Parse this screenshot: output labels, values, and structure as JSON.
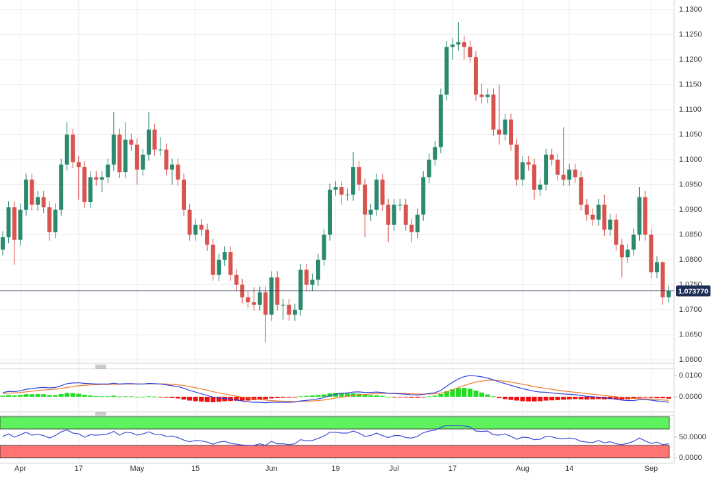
{
  "chart_data": [
    {
      "type": "candlestick",
      "categories": [
        null,
        null,
        null,
        "Apr",
        null,
        null,
        null,
        null,
        null,
        null,
        null,
        null,
        null,
        "17",
        null,
        null,
        null,
        null,
        null,
        null,
        null,
        null,
        null,
        "May",
        null,
        null,
        null,
        null,
        null,
        null,
        null,
        null,
        null,
        "15",
        null,
        null,
        null,
        null,
        null,
        null,
        null,
        null,
        null,
        null,
        null,
        null,
        "Jun",
        null,
        null,
        null,
        null,
        null,
        null,
        null,
        null,
        null,
        null,
        "19",
        null,
        null,
        null,
        null,
        null,
        null,
        null,
        null,
        null,
        "Jul",
        null,
        null,
        null,
        null,
        null,
        null,
        null,
        null,
        null,
        "17",
        null,
        null,
        null,
        null,
        null,
        null,
        null,
        null,
        null,
        null,
        null,
        "Aug",
        null,
        null,
        null,
        null,
        null,
        null,
        null,
        "14",
        null,
        null,
        null,
        null,
        null,
        null,
        null,
        null,
        null,
        null,
        null,
        null,
        null,
        "Sep",
        null,
        null,
        null
      ],
      "open": [
        1.082,
        1.0845,
        1.0905,
        1.084,
        1.09,
        1.096,
        1.091,
        1.0925,
        1.0905,
        1.0855,
        1.09,
        1.099,
        1.105,
        1.0995,
        1.0985,
        1.0915,
        1.0965,
        1.096,
        1.0965,
        1.099,
        1.105,
        1.0975,
        1.104,
        1.103,
        1.098,
        1.101,
        1.106,
        1.102,
        1.102,
        1.098,
        1.099,
        1.096,
        1.09,
        1.085,
        1.087,
        1.086,
        1.083,
        1.077,
        1.08,
        1.0815,
        1.077,
        1.075,
        1.0725,
        1.0715,
        1.071,
        1.0735,
        1.069,
        1.0765,
        1.071,
        1.071,
        1.069,
        1.07,
        1.078,
        1.075,
        1.076,
        1.08,
        1.085,
        1.094,
        1.0945,
        1.093,
        1.093,
        1.0985,
        1.095,
        1.089,
        1.09,
        1.096,
        1.091,
        1.087,
        1.091,
        1.091,
        1.087,
        1.0855,
        1.089,
        1.0965,
        1.1,
        1.1025,
        1.113,
        1.1225,
        1.123,
        1.1235,
        1.1225,
        1.1205,
        1.113,
        1.1125,
        1.113,
        1.106,
        1.105,
        1.108,
        1.103,
        1.096,
        1.0995,
        1.099,
        1.094,
        1.095,
        1.101,
        1.1,
        1.097,
        1.096,
        1.098,
        1.0965,
        1.091,
        1.089,
        1.088,
        1.091,
        1.086,
        1.088,
        1.083,
        1.0805,
        1.082,
        1.085,
        1.0925,
        1.085,
        1.0775,
        1.0795,
        1.0725
      ],
      "high": [
        1.0857,
        1.0917,
        1.0917,
        1.0912,
        1.0972,
        1.0972,
        1.0937,
        1.0937,
        1.0917,
        1.0912,
        1.1002,
        1.1075,
        1.1062,
        1.1007,
        1.0997,
        1.0977,
        1.0977,
        1.0977,
        1.1002,
        1.1095,
        1.1062,
        1.1075,
        1.1052,
        1.1042,
        1.1022,
        1.1095,
        1.1072,
        1.1045,
        1.1032,
        1.1002,
        1.1002,
        1.0972,
        1.0912,
        1.0882,
        1.0882,
        1.0872,
        1.0842,
        1.0812,
        1.0827,
        1.0827,
        1.0782,
        1.0762,
        1.0737,
        1.0745,
        1.0747,
        1.0747,
        1.0777,
        1.0777,
        1.0722,
        1.0722,
        1.0712,
        1.0792,
        1.0792,
        1.0772,
        1.0812,
        1.0862,
        1.0952,
        1.0957,
        1.0957,
        1.0942,
        1.1015,
        1.0997,
        1.0962,
        1.0912,
        1.0972,
        1.0972,
        1.0922,
        1.0922,
        1.0922,
        1.0922,
        1.0882,
        1.0902,
        1.0977,
        1.1012,
        1.1037,
        1.1142,
        1.1237,
        1.1242,
        1.1275,
        1.1247,
        1.1237,
        1.1217,
        1.1152,
        1.1142,
        1.1142,
        1.115,
        1.1092,
        1.1092,
        1.1042,
        1.1007,
        1.1007,
        1.1002,
        1.0962,
        1.1022,
        1.1022,
        1.1012,
        1.1065,
        1.0992,
        1.0992,
        1.0977,
        1.0922,
        1.0902,
        1.0922,
        1.093,
        1.0892,
        1.0892,
        1.0842,
        1.0832,
        1.0862,
        1.0945,
        1.0937,
        1.0862,
        1.0807,
        1.0797,
        1.0748
      ],
      "low": [
        1.0808,
        1.0833,
        1.079,
        1.0828,
        1.0888,
        1.0898,
        1.0898,
        1.0893,
        1.0838,
        1.0843,
        1.0888,
        1.0978,
        1.0983,
        1.092,
        1.0903,
        1.0903,
        1.0948,
        1.0935,
        1.0953,
        1.0978,
        1.0963,
        1.0963,
        1.1018,
        1.095,
        1.0968,
        1.0998,
        1.1008,
        1.1008,
        1.0968,
        1.095,
        1.0948,
        1.0888,
        1.0838,
        1.0838,
        1.0848,
        1.0818,
        1.0758,
        1.0758,
        1.0788,
        1.0758,
        1.0738,
        1.0713,
        1.0703,
        1.0698,
        1.0698,
        1.0635,
        1.0678,
        1.0698,
        1.068,
        1.0678,
        1.0678,
        1.0688,
        1.0738,
        1.0738,
        1.0748,
        1.0788,
        1.0838,
        1.0928,
        1.091,
        1.0918,
        1.0918,
        1.0938,
        1.0845,
        1.0878,
        1.0888,
        1.0898,
        1.0835,
        1.0858,
        1.0898,
        1.0858,
        1.0835,
        1.0843,
        1.0878,
        1.0953,
        1.0988,
        1.1013,
        1.1118,
        1.12,
        1.1218,
        1.12,
        1.1193,
        1.1118,
        1.1113,
        1.1113,
        1.1048,
        1.103,
        1.1038,
        1.1018,
        1.0948,
        1.0948,
        1.0978,
        1.092,
        1.0928,
        1.0938,
        1.0988,
        1.0958,
        1.0948,
        1.0948,
        1.0953,
        1.0898,
        1.0878,
        1.0868,
        1.0868,
        1.0848,
        1.0848,
        1.0818,
        1.0765,
        1.0793,
        1.0808,
        1.0838,
        1.0838,
        1.0763,
        1.0763,
        1.071,
        1.0715
      ],
      "close": [
        1.0845,
        1.0905,
        1.084,
        1.09,
        1.096,
        1.091,
        1.0925,
        1.0905,
        1.0855,
        1.09,
        1.099,
        1.105,
        1.0995,
        1.0985,
        1.0915,
        1.0965,
        1.096,
        1.0965,
        1.099,
        1.105,
        1.0975,
        1.104,
        1.103,
        1.098,
        1.101,
        1.106,
        1.102,
        1.102,
        1.098,
        1.099,
        1.096,
        1.09,
        1.085,
        1.087,
        1.086,
        1.083,
        1.077,
        1.08,
        1.0815,
        1.077,
        1.075,
        1.0725,
        1.0715,
        1.071,
        1.0735,
        1.069,
        1.0765,
        1.071,
        1.071,
        1.069,
        1.07,
        1.078,
        1.075,
        1.076,
        1.08,
        1.085,
        1.094,
        1.0945,
        1.093,
        1.093,
        1.0985,
        1.095,
        1.089,
        1.09,
        1.096,
        1.091,
        1.087,
        1.091,
        1.091,
        1.087,
        1.0855,
        1.089,
        1.0965,
        1.1,
        1.1025,
        1.113,
        1.1225,
        1.123,
        1.1235,
        1.1225,
        1.1205,
        1.113,
        1.1125,
        1.113,
        1.106,
        1.105,
        1.108,
        1.103,
        1.096,
        1.0995,
        1.099,
        1.094,
        1.095,
        1.101,
        1.1,
        1.097,
        1.096,
        1.098,
        1.0965,
        1.091,
        1.089,
        1.088,
        1.091,
        1.086,
        1.088,
        1.083,
        1.0805,
        1.082,
        1.085,
        1.0925,
        1.085,
        1.0775,
        1.0795,
        1.0725,
        1.07377
      ],
      "colors": {
        "up": "#2b8a6e",
        "down": "#d9534f"
      },
      "last_price": {
        "value": 1.07377,
        "label": "1.073770"
      },
      "last_price_color": "#1e2d55",
      "ylim": [
        1.0596,
        1.1319
      ],
      "yticks": [
        {
          "value": 1.06,
          "label": "1.0600"
        },
        {
          "value": 1.065,
          "label": "1.0650"
        },
        {
          "value": 1.07,
          "label": "1.0700"
        },
        {
          "value": 1.075,
          "label": "1.0750"
        },
        {
          "value": 1.08,
          "label": "1.0800"
        },
        {
          "value": 1.085,
          "label": "1.0850"
        },
        {
          "value": 1.09,
          "label": "1.0900"
        },
        {
          "value": 1.095,
          "label": "1.0950"
        },
        {
          "value": 1.1,
          "label": "1.1000"
        },
        {
          "value": 1.105,
          "label": "1.1050"
        },
        {
          "value": 1.11,
          "label": "1.1100"
        },
        {
          "value": 1.115,
          "label": "1.1150"
        },
        {
          "value": 1.12,
          "label": "1.1200"
        },
        {
          "value": 1.125,
          "label": "1.1250"
        },
        {
          "value": 1.13,
          "label": "1.1300"
        }
      ],
      "grid": true
    },
    {
      "type": "macd",
      "macd": {
        "color": "#2f3fe0",
        "values": [
          0.002,
          0.0025,
          0.0024,
          0.0028,
          0.0035,
          0.0038,
          0.0042,
          0.0044,
          0.0042,
          0.0044,
          0.0052,
          0.0062,
          0.0065,
          0.0066,
          0.0063,
          0.0062,
          0.006,
          0.006,
          0.006,
          0.0064,
          0.006,
          0.0062,
          0.0062,
          0.006,
          0.006,
          0.0063,
          0.0062,
          0.006,
          0.0056,
          0.0052,
          0.0048,
          0.004,
          0.003,
          0.0022,
          0.0014,
          0.0006,
          -0.0002,
          -0.0006,
          -0.0008,
          -0.0012,
          -0.0016,
          -0.002,
          -0.0024,
          -0.0026,
          -0.0026,
          -0.0028,
          -0.0026,
          -0.0026,
          -0.0026,
          -0.0026,
          -0.0025,
          -0.002,
          -0.0017,
          -0.0014,
          -0.001,
          -0.0004,
          0.0005,
          0.0012,
          0.0016,
          0.0018,
          0.0022,
          0.0023,
          0.002,
          0.002,
          0.0022,
          0.002,
          0.0016,
          0.0015,
          0.0014,
          0.0012,
          0.0009,
          0.0008,
          0.0011,
          0.0015,
          0.0019,
          0.003,
          0.005,
          0.0068,
          0.0084,
          0.0095,
          0.01,
          0.0098,
          0.0094,
          0.0088,
          0.008,
          0.007,
          0.0062,
          0.0054,
          0.0046,
          0.0038,
          0.0032,
          0.0026,
          0.0022,
          0.0021,
          0.0018,
          0.0015,
          0.0013,
          0.0012,
          0.001,
          0.0006,
          0.0002,
          0.0,
          -0.0002,
          -0.0006,
          -0.0008,
          -0.0012,
          -0.0016,
          -0.0018,
          -0.0018,
          -0.0014,
          -0.0014,
          -0.0016,
          -0.002,
          -0.0022,
          -0.0026
        ]
      },
      "signal": {
        "color": "#f07a28",
        "values": [
          0.0015,
          0.0017,
          0.0018,
          0.002,
          0.0023,
          0.0026,
          0.0029,
          0.0032,
          0.0034,
          0.0036,
          0.0039,
          0.0044,
          0.0048,
          0.0052,
          0.0054,
          0.0056,
          0.0057,
          0.0058,
          0.0058,
          0.0059,
          0.0059,
          0.006,
          0.006,
          0.006,
          0.006,
          0.0061,
          0.0061,
          0.0061,
          0.006,
          0.0058,
          0.0056,
          0.0053,
          0.0048,
          0.0043,
          0.0037,
          0.0031,
          0.0024,
          0.0018,
          0.0013,
          0.0008,
          0.0003,
          -0.0002,
          -0.0006,
          -0.001,
          -0.0013,
          -0.0016,
          -0.0018,
          -0.002,
          -0.0021,
          -0.0022,
          -0.0023,
          -0.0022,
          -0.0021,
          -0.002,
          -0.0018,
          -0.0015,
          -0.0011,
          -0.0006,
          -0.0002,
          0.0002,
          0.0006,
          0.0009,
          0.0011,
          0.0013,
          0.0015,
          0.0016,
          0.0016,
          0.0016,
          0.0016,
          0.0015,
          0.0014,
          0.0013,
          0.0013,
          0.0013,
          0.0014,
          0.0017,
          0.0024,
          0.0033,
          0.0043,
          0.0053,
          0.0062,
          0.0069,
          0.0074,
          0.0077,
          0.0078,
          0.0076,
          0.0073,
          0.0069,
          0.0064,
          0.0059,
          0.0054,
          0.0048,
          0.0043,
          0.0039,
          0.0035,
          0.0031,
          0.0027,
          0.0024,
          0.0021,
          0.0018,
          0.0015,
          0.0012,
          0.0009,
          0.0006,
          0.0003,
          0.0,
          -0.0003,
          -0.0006,
          -0.0008,
          -0.0009,
          -0.001,
          -0.0011,
          -0.0013,
          -0.0015,
          -0.0017
        ]
      },
      "histogram": {
        "colors": [
          "#22dd22",
          "#ee1111"
        ],
        "values": [
          0.0005,
          0.0008,
          0.0006,
          0.0008,
          0.0012,
          0.0012,
          0.0013,
          0.0012,
          0.0008,
          0.0008,
          0.0013,
          0.0018,
          0.0017,
          0.0014,
          0.0009,
          0.0006,
          0.0003,
          0.0002,
          0.0002,
          0.0005,
          0.0001,
          0.0002,
          0.0002,
          0.0,
          0.0,
          0.0002,
          0.0001,
          -0.0001,
          -0.0004,
          -0.0006,
          -0.0008,
          -0.0013,
          -0.0018,
          -0.0021,
          -0.0023,
          -0.0025,
          -0.0026,
          -0.0024,
          -0.0021,
          -0.002,
          -0.0019,
          -0.0018,
          -0.0018,
          -0.0016,
          -0.0013,
          -0.0012,
          -0.0008,
          -0.0006,
          -0.0005,
          -0.0004,
          -0.0002,
          0.0002,
          0.0004,
          0.0006,
          0.0008,
          0.0011,
          0.0016,
          0.0018,
          0.0018,
          0.0016,
          0.0016,
          0.0014,
          0.0009,
          0.0007,
          0.0007,
          0.0004,
          0.0,
          -0.0001,
          -0.0002,
          -0.0003,
          -0.0005,
          -0.0005,
          -0.0002,
          0.0002,
          0.0005,
          0.0013,
          0.0026,
          0.0035,
          0.0041,
          0.0042,
          0.0038,
          0.0029,
          0.002,
          0.0011,
          0.0002,
          -0.0006,
          -0.0011,
          -0.0015,
          -0.0018,
          -0.0021,
          -0.0022,
          -0.0022,
          -0.0021,
          -0.0018,
          -0.0017,
          -0.0016,
          -0.0014,
          -0.0012,
          -0.0011,
          -0.0012,
          -0.0013,
          -0.0012,
          -0.0011,
          -0.0012,
          -0.0011,
          -0.0012,
          -0.0013,
          -0.0012,
          -0.001,
          -0.0005,
          -0.0004,
          -0.0005,
          -0.0007,
          -0.0007,
          -0.0009
        ]
      },
      "ylim": [
        -0.0068,
        0.0126
      ],
      "yticks": [
        {
          "value": 0.01,
          "label": "0.0100"
        },
        {
          "value": 0,
          "label": "0.0000"
        }
      ]
    },
    {
      "type": "line",
      "color": "#3a4ad8",
      "values": [
        52,
        58,
        50,
        56,
        62,
        55,
        57,
        54,
        48,
        54,
        63,
        68,
        60,
        58,
        50,
        56,
        55,
        56,
        58,
        64,
        55,
        62,
        61,
        55,
        58,
        63,
        57,
        57,
        52,
        53,
        49,
        43,
        39,
        42,
        41,
        38,
        33,
        38,
        40,
        35,
        33,
        31,
        30,
        30,
        34,
        30,
        40,
        34,
        34,
        32,
        34,
        44,
        41,
        42,
        47,
        53,
        62,
        62,
        60,
        60,
        65,
        60,
        52,
        54,
        60,
        54,
        49,
        54,
        54,
        49,
        48,
        52,
        61,
        65,
        67,
        74,
        79,
        79,
        79,
        77,
        75,
        65,
        64,
        65,
        56,
        55,
        58,
        52,
        45,
        50,
        49,
        44,
        45,
        52,
        51,
        47,
        46,
        48,
        46,
        40,
        38,
        37,
        42,
        36,
        39,
        34,
        32,
        35,
        40,
        48,
        41,
        35,
        38,
        32,
        34
      ],
      "bands": [
        {
          "range": [
            70,
            100
          ],
          "color": "#5ff25f"
        },
        {
          "range": [
            0,
            30
          ],
          "color": "#ff7373"
        }
      ],
      "ylim": [
        -11.7,
        101.7
      ],
      "yticks": [
        {
          "value": 50,
          "label": "50.0000"
        },
        {
          "value": 0,
          "label": "0.0000"
        }
      ]
    }
  ]
}
